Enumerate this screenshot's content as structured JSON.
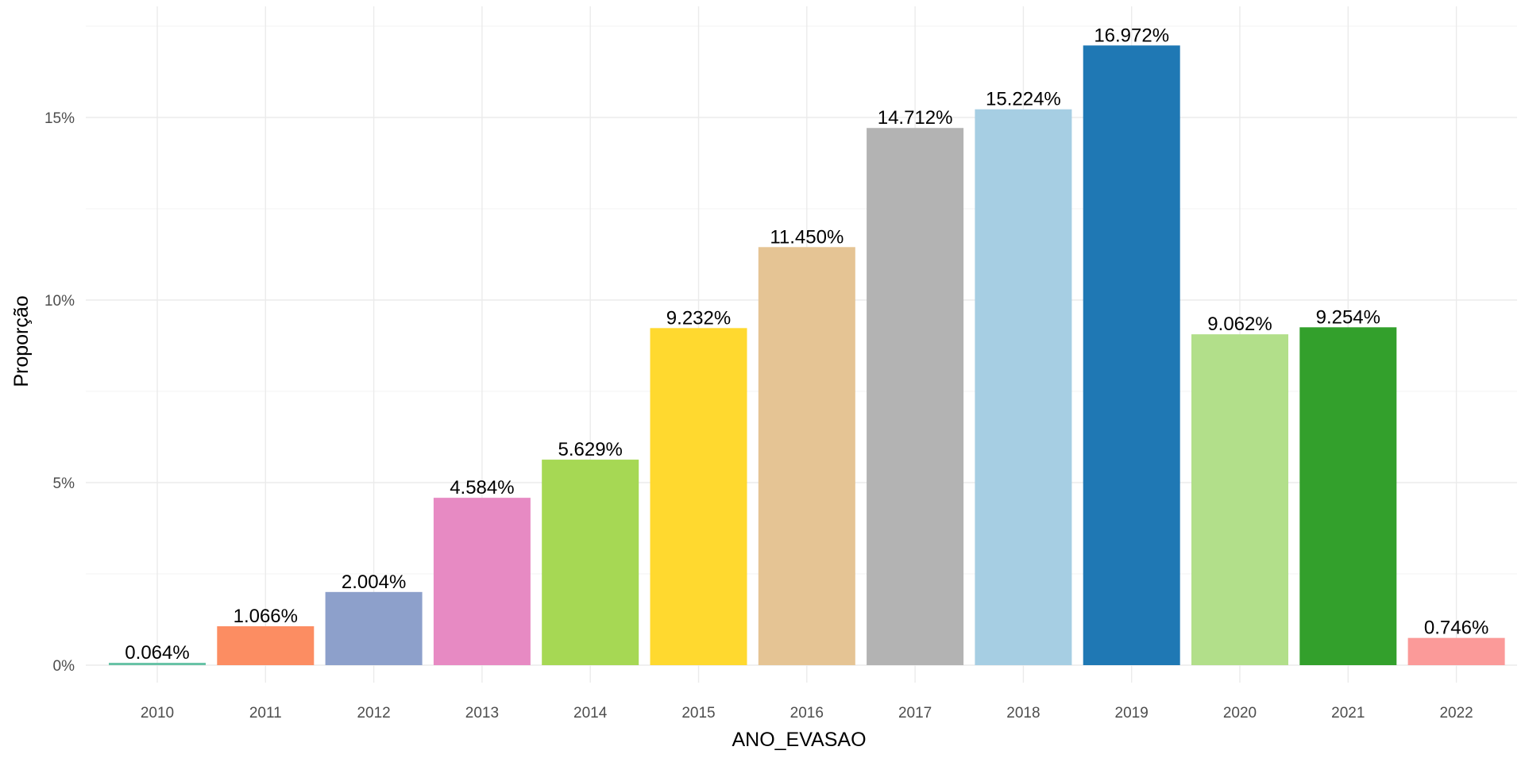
{
  "chart_data": {
    "type": "bar",
    "xlabel": "ANO_EVASAO",
    "ylabel": "Proporção",
    "ylim": [
      0,
      18
    ],
    "y_ticks": [
      0,
      5,
      10,
      15
    ],
    "y_tick_labels": [
      "0%",
      "5%",
      "10%",
      "15%"
    ],
    "grid": true,
    "legend": "none",
    "categories": [
      "2010",
      "2011",
      "2012",
      "2013",
      "2014",
      "2015",
      "2016",
      "2017",
      "2018",
      "2019",
      "2020",
      "2021",
      "2022"
    ],
    "values": [
      0.064,
      1.066,
      2.004,
      4.584,
      5.629,
      9.232,
      11.45,
      14.712,
      15.224,
      16.972,
      9.062,
      9.254,
      0.746
    ],
    "value_labels": [
      "0.064%",
      "1.066%",
      "2.004%",
      "4.584%",
      "5.629%",
      "9.232%",
      "11.450%",
      "14.712%",
      "15.224%",
      "16.972%",
      "9.062%",
      "9.254%",
      "0.746%"
    ],
    "colors": [
      "#66C2A5",
      "#FC8D62",
      "#8DA0CB",
      "#E78AC3",
      "#A6D854",
      "#FFD92F",
      "#E5C494",
      "#B3B3B3",
      "#A6CEE3",
      "#1F78B4",
      "#B2DF8A",
      "#33A02C",
      "#FB9A99"
    ]
  }
}
